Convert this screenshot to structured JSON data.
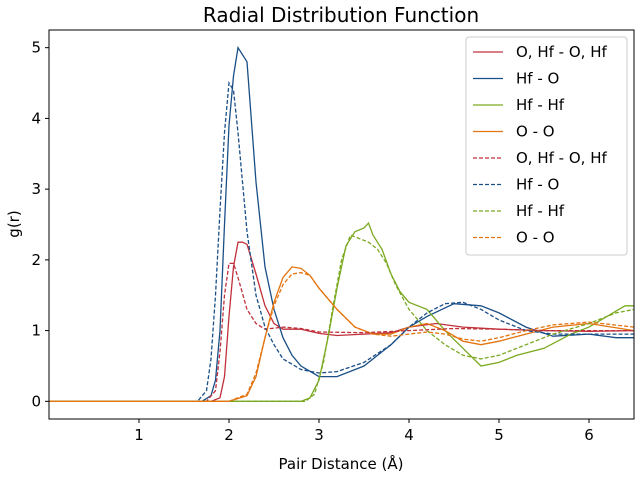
{
  "chart_data": {
    "type": "line",
    "title": "Radial Distribution Function",
    "xlabel": "Pair Distance (Å)",
    "ylabel": "g(r)",
    "xlim": [
      0.0,
      6.5
    ],
    "ylim": [
      -0.25,
      5.25
    ],
    "xticks": [
      1,
      2,
      3,
      4,
      5,
      6
    ],
    "yticks": [
      0,
      1,
      2,
      3,
      4,
      5
    ],
    "legend_position": "top-right",
    "series": [
      {
        "name": "O, Hf - O, Hf",
        "color": "#c0303a",
        "style": "solid",
        "x": [
          0,
          1.8,
          1.9,
          1.95,
          2.0,
          2.05,
          2.1,
          2.15,
          2.2,
          2.3,
          2.4,
          2.5,
          2.6,
          2.8,
          3.0,
          3.2,
          3.5,
          3.8,
          4.0,
          4.3,
          4.6,
          5.0,
          5.5,
          6.0,
          6.5
        ],
        "y": [
          0,
          0,
          0.05,
          0.35,
          1.2,
          1.9,
          2.25,
          2.25,
          2.22,
          1.8,
          1.35,
          1.1,
          1.02,
          1.02,
          0.96,
          0.93,
          0.95,
          0.97,
          1.05,
          1.1,
          1.05,
          1.02,
          1.0,
          0.99,
          1.0
        ]
      },
      {
        "name": "Hf - O",
        "color": "#1a4f86",
        "style": "solid",
        "x": [
          0,
          1.7,
          1.8,
          1.85,
          1.9,
          1.95,
          2.0,
          2.05,
          2.1,
          2.2,
          2.3,
          2.4,
          2.5,
          2.6,
          2.7,
          2.8,
          3.0,
          3.2,
          3.5,
          3.8,
          4.0,
          4.2,
          4.5,
          4.8,
          5.0,
          5.3,
          5.6,
          6.0,
          6.3,
          6.5
        ],
        "y": [
          0,
          0,
          0.08,
          0.3,
          1.0,
          2.5,
          3.9,
          4.6,
          5.0,
          4.8,
          3.1,
          1.9,
          1.3,
          0.9,
          0.65,
          0.5,
          0.35,
          0.35,
          0.5,
          0.8,
          1.05,
          1.2,
          1.38,
          1.35,
          1.25,
          1.05,
          0.92,
          0.95,
          0.9,
          0.9
        ]
      },
      {
        "name": "Hf - Hf",
        "color": "#7aa920",
        "style": "solid",
        "x": [
          0,
          2.8,
          2.9,
          3.0,
          3.1,
          3.2,
          3.3,
          3.4,
          3.5,
          3.55,
          3.6,
          3.7,
          3.8,
          3.9,
          4.0,
          4.2,
          4.4,
          4.6,
          4.8,
          5.0,
          5.2,
          5.5,
          5.8,
          6.0,
          6.2,
          6.4,
          6.5
        ],
        "y": [
          0,
          0,
          0.05,
          0.3,
          0.9,
          1.6,
          2.2,
          2.4,
          2.45,
          2.52,
          2.35,
          2.15,
          1.8,
          1.55,
          1.4,
          1.3,
          1.0,
          0.75,
          0.5,
          0.55,
          0.65,
          0.75,
          0.95,
          1.05,
          1.2,
          1.35,
          1.35
        ]
      },
      {
        "name": "O - O",
        "color": "#e3740f",
        "style": "solid",
        "x": [
          0,
          2.0,
          2.2,
          2.3,
          2.4,
          2.5,
          2.6,
          2.7,
          2.8,
          2.9,
          3.0,
          3.2,
          3.4,
          3.6,
          3.8,
          4.0,
          4.2,
          4.4,
          4.6,
          4.8,
          5.0,
          5.3,
          5.6,
          6.0,
          6.5
        ],
        "y": [
          0,
          0,
          0.08,
          0.35,
          0.9,
          1.4,
          1.75,
          1.9,
          1.88,
          1.78,
          1.6,
          1.3,
          1.05,
          0.95,
          0.95,
          1.05,
          1.1,
          1.0,
          0.85,
          0.8,
          0.85,
          0.95,
          1.05,
          1.1,
          1.0
        ]
      },
      {
        "name": "O, Hf - O, Hf",
        "color": "#c0303a",
        "style": "dashed",
        "x": [
          0,
          1.75,
          1.85,
          1.9,
          1.95,
          2.0,
          2.05,
          2.1,
          2.2,
          2.3,
          2.4,
          2.6,
          2.8,
          3.0,
          3.5,
          4.0,
          4.5,
          5.0,
          5.5,
          6.0,
          6.5
        ],
        "y": [
          0,
          0,
          0.15,
          0.7,
          1.5,
          1.95,
          1.95,
          1.75,
          1.3,
          1.1,
          1.02,
          1.05,
          1.03,
          0.98,
          0.97,
          1.0,
          1.03,
          1.02,
          1.0,
          1.0,
          1.0
        ]
      },
      {
        "name": "Hf - O",
        "color": "#1a4f86",
        "style": "dashed",
        "x": [
          0,
          1.65,
          1.75,
          1.8,
          1.85,
          1.9,
          1.95,
          2.0,
          2.05,
          2.1,
          2.2,
          2.3,
          2.4,
          2.5,
          2.6,
          2.8,
          3.0,
          3.2,
          3.5,
          3.8,
          4.0,
          4.2,
          4.4,
          4.6,
          4.8,
          5.0,
          5.3,
          5.6,
          6.0,
          6.5
        ],
        "y": [
          0,
          0,
          0.15,
          0.6,
          1.5,
          2.7,
          3.8,
          4.5,
          4.4,
          3.8,
          2.4,
          1.5,
          1.05,
          0.8,
          0.6,
          0.45,
          0.4,
          0.42,
          0.55,
          0.8,
          1.05,
          1.25,
          1.38,
          1.4,
          1.3,
          1.15,
          1.0,
          0.95,
          0.95,
          0.95
        ]
      },
      {
        "name": "Hf - Hf",
        "color": "#7aa920",
        "style": "dashed",
        "x": [
          0,
          2.85,
          2.95,
          3.05,
          3.15,
          3.25,
          3.35,
          3.45,
          3.55,
          3.65,
          3.75,
          3.85,
          4.0,
          4.2,
          4.4,
          4.6,
          4.8,
          5.0,
          5.3,
          5.6,
          6.0,
          6.3,
          6.5
        ],
        "y": [
          0,
          0,
          0.1,
          0.55,
          1.3,
          2.0,
          2.35,
          2.3,
          2.25,
          2.15,
          1.95,
          1.65,
          1.3,
          1.0,
          0.8,
          0.65,
          0.6,
          0.65,
          0.8,
          0.95,
          1.1,
          1.25,
          1.3
        ]
      },
      {
        "name": "O - O",
        "color": "#e3740f",
        "style": "dashed",
        "x": [
          0,
          2.0,
          2.2,
          2.3,
          2.4,
          2.5,
          2.6,
          2.7,
          2.8,
          2.9,
          3.0,
          3.2,
          3.4,
          3.6,
          3.8,
          4.0,
          4.2,
          4.4,
          4.6,
          4.8,
          5.0,
          5.3,
          5.6,
          6.0,
          6.5
        ],
        "y": [
          0,
          0,
          0.1,
          0.4,
          0.9,
          1.35,
          1.65,
          1.8,
          1.82,
          1.78,
          1.6,
          1.3,
          1.05,
          0.95,
          0.92,
          0.95,
          0.98,
          0.95,
          0.88,
          0.85,
          0.9,
          1.0,
          1.08,
          1.12,
          1.05
        ]
      }
    ]
  }
}
